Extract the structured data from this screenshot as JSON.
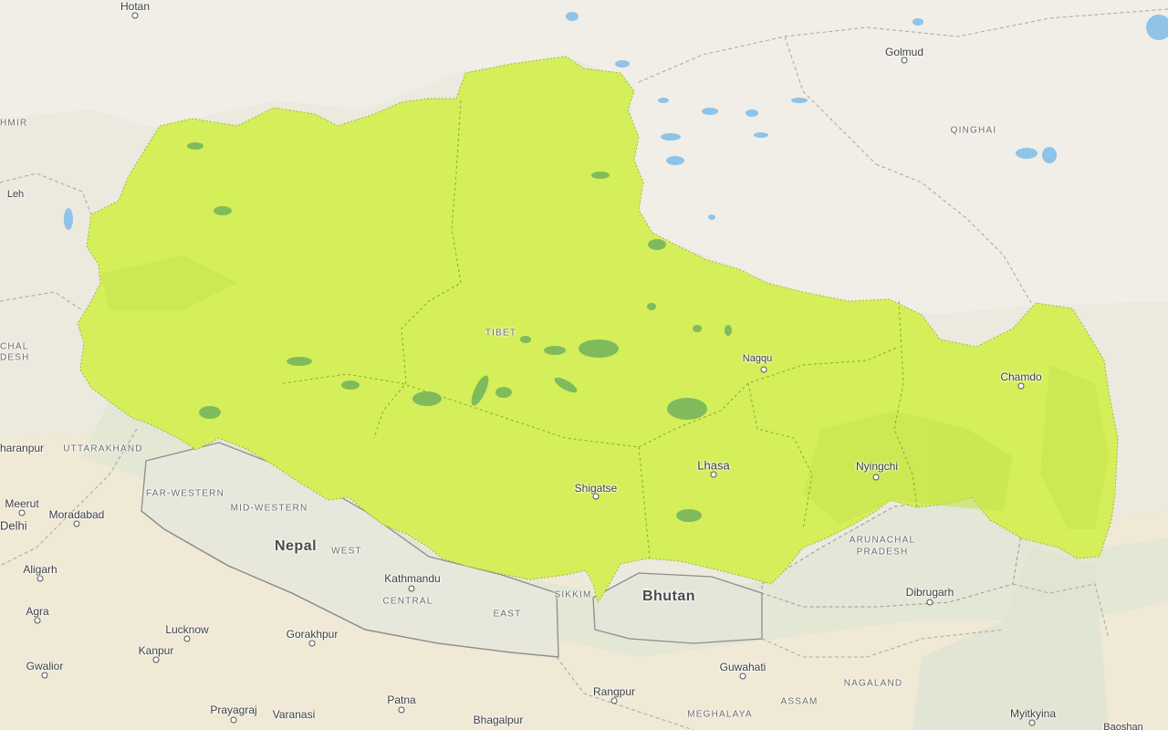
{
  "map": {
    "highlight_color": "#d4ef5a",
    "water_color": "#8fc3e8",
    "land_color": "#ece9df",
    "country_labels": [
      {
        "key": "nepal",
        "text": "Nepal"
      },
      {
        "key": "bhutan",
        "text": "Bhutan"
      }
    ],
    "region_labels": [
      {
        "key": "tibet",
        "text": "TIBET"
      },
      {
        "key": "qinghai",
        "text": "QINGHAI"
      },
      {
        "key": "uttarakhand",
        "text": "UTTARAKHAND"
      },
      {
        "key": "far_western",
        "text": "FAR-WESTERN"
      },
      {
        "key": "mid_western",
        "text": "MID-WESTERN"
      },
      {
        "key": "west",
        "text": "WEST"
      },
      {
        "key": "central",
        "text": "CENTRAL"
      },
      {
        "key": "east",
        "text": "EAST"
      },
      {
        "key": "sikkim",
        "text": "SIKKIM"
      },
      {
        "key": "arunachal1",
        "text": "ARUNACHAL"
      },
      {
        "key": "arunachal2",
        "text": "PRADESH"
      },
      {
        "key": "nagaland",
        "text": "NAGALAND"
      },
      {
        "key": "assam",
        "text": "ASSAM"
      },
      {
        "key": "meghalaya",
        "text": "MEGHALAYA"
      },
      {
        "key": "himachal",
        "text": "CHAL"
      },
      {
        "key": "pradesh_left",
        "text": "DESH"
      },
      {
        "key": "kashmir",
        "text": "HMIR"
      }
    ],
    "cities": [
      {
        "key": "hotan",
        "text": "Hotan"
      },
      {
        "key": "golmud",
        "text": "Golmud"
      },
      {
        "key": "leh",
        "text": "Leh"
      },
      {
        "key": "nagqu",
        "text": "Nagqu"
      },
      {
        "key": "chamdo",
        "text": "Chamdo"
      },
      {
        "key": "lhasa",
        "text": "Lhasa"
      },
      {
        "key": "nyingchi",
        "text": "Nyingchi"
      },
      {
        "key": "shigatse",
        "text": "Shigatse"
      },
      {
        "key": "kathmandu",
        "text": "Kathmandu"
      },
      {
        "key": "dibrugarh",
        "text": "Dibrugarh"
      },
      {
        "key": "saharanpur",
        "text": "haranpur"
      },
      {
        "key": "meerut",
        "text": "Meerut"
      },
      {
        "key": "moradabad",
        "text": "Moradabad"
      },
      {
        "key": "delhi",
        "text": "Delhi"
      },
      {
        "key": "aligarh",
        "text": "Aligarh"
      },
      {
        "key": "agra",
        "text": "Agra"
      },
      {
        "key": "lucknow",
        "text": "Lucknow"
      },
      {
        "key": "gorakhpur",
        "text": "Gorakhpur"
      },
      {
        "key": "kanpur",
        "text": "Kanpur"
      },
      {
        "key": "gwalior",
        "text": "Gwalior"
      },
      {
        "key": "prayagraj",
        "text": "Prayagraj"
      },
      {
        "key": "varanasi",
        "text": "Varanasi"
      },
      {
        "key": "patna",
        "text": "Patna"
      },
      {
        "key": "bhagalpur",
        "text": "Bhagalpur"
      },
      {
        "key": "rangpur",
        "text": "Rangpur"
      },
      {
        "key": "guwahati",
        "text": "Guwahati"
      },
      {
        "key": "myitkyina",
        "text": "Myitkyina"
      },
      {
        "key": "baoshan",
        "text": "Baoshan"
      }
    ]
  }
}
